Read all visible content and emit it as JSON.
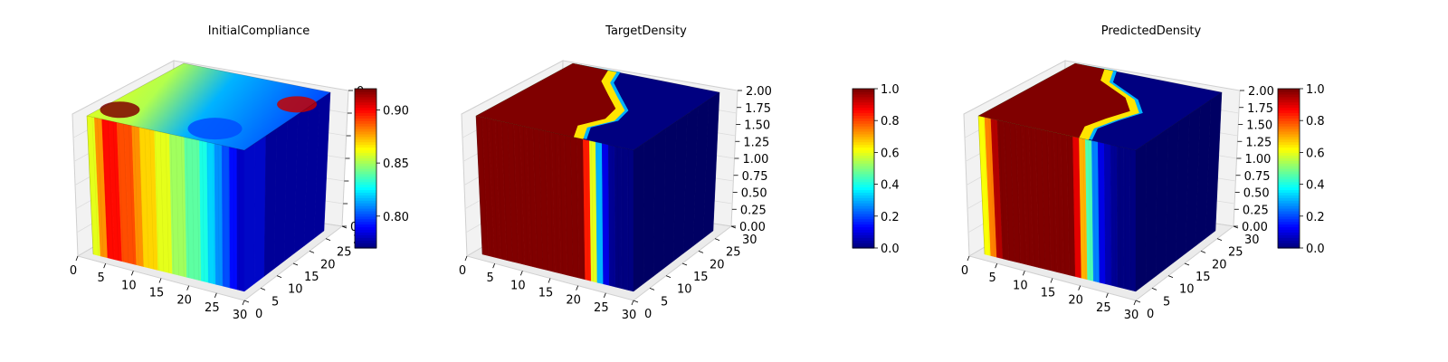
{
  "chart_data": [
    {
      "type": "3d-voxel",
      "title": "InitialCompliance",
      "colormap": "jet",
      "x_ticks": [
        "0",
        "5",
        "10",
        "15",
        "20",
        "25",
        "30"
      ],
      "y_ticks": [
        "0",
        "5",
        "10",
        "15",
        "20",
        "25",
        "30"
      ],
      "z_ticks": [
        "0",
        "",
        "",
        "",
        "",
        "",
        "0"
      ],
      "colorbar": {
        "vmin": 0.77,
        "vmax": 0.92,
        "ticks": [
          "0.80",
          "0.85",
          "0.90"
        ]
      },
      "front_face_profile": [
        0.86,
        0.88,
        0.9,
        0.9,
        0.89,
        0.89,
        0.88,
        0.87,
        0.87,
        0.86,
        0.86,
        0.85,
        0.85,
        0.84,
        0.84,
        0.83,
        0.82,
        0.81,
        0.8,
        0.79,
        0.78
      ],
      "side_face_profile": [
        0.79,
        0.79,
        0.78,
        0.78,
        0.78,
        0.78,
        0.78,
        0.78
      ],
      "top_hotspots": [
        {
          "u": 0.1,
          "v": 0.82,
          "value": 0.92
        },
        {
          "u": 0.92,
          "v": 0.25,
          "value": 0.91
        },
        {
          "u": 0.7,
          "v": 0.8,
          "value": 0.8
        }
      ]
    },
    {
      "type": "3d-voxel",
      "title": "TargetDensity",
      "colormap": "jet",
      "x_ticks": [
        "0",
        "5",
        "10",
        "15",
        "20",
        "25",
        "30"
      ],
      "y_ticks": [
        "0",
        "5",
        "10",
        "15",
        "20",
        "25",
        "30"
      ],
      "z_ticks": [
        "0.00",
        "0.25",
        "0.50",
        "0.75",
        "1.00",
        "1.25",
        "1.50",
        "1.75",
        "2.00"
      ],
      "colorbar": {
        "vmin": 0.0,
        "vmax": 1.0,
        "ticks": [
          "0.0",
          "0.2",
          "0.4",
          "0.6",
          "0.8",
          "1.0"
        ]
      },
      "front_face_profile": [
        1,
        1,
        1,
        1,
        1,
        1,
        1,
        1,
        1,
        1,
        1,
        1,
        1,
        1,
        1,
        1,
        1,
        0.85,
        0.6,
        0.3,
        0.1,
        0.02,
        0,
        0,
        0
      ],
      "side_face_profile": [
        0,
        0,
        0,
        0,
        0,
        0,
        0,
        0
      ]
    },
    {
      "type": "3d-voxel",
      "title": "PredictedDensity",
      "colormap": "jet",
      "x_ticks": [
        "0",
        "5",
        "10",
        "15",
        "20",
        "25",
        "30"
      ],
      "y_ticks": [
        "0",
        "5",
        "10",
        "15",
        "20",
        "25",
        "30"
      ],
      "z_ticks": [
        "0.00",
        "0.25",
        "0.50",
        "0.75",
        "1.00",
        "1.25",
        "1.50",
        "1.75",
        "2.00"
      ],
      "colorbar": {
        "vmin": 0.0,
        "vmax": 1.0,
        "ticks": [
          "0.0",
          "0.2",
          "0.4",
          "0.6",
          "0.8",
          "1.0"
        ]
      },
      "front_face_profile": [
        0.62,
        0.75,
        0.95,
        1,
        1,
        1,
        1,
        1,
        1,
        1,
        1,
        1,
        1,
        1,
        1,
        0.9,
        0.7,
        0.45,
        0.25,
        0.1,
        0.05,
        0.02,
        0,
        0,
        0
      ],
      "side_face_profile": [
        0,
        0,
        0,
        0,
        0,
        0,
        0,
        0
      ]
    }
  ]
}
